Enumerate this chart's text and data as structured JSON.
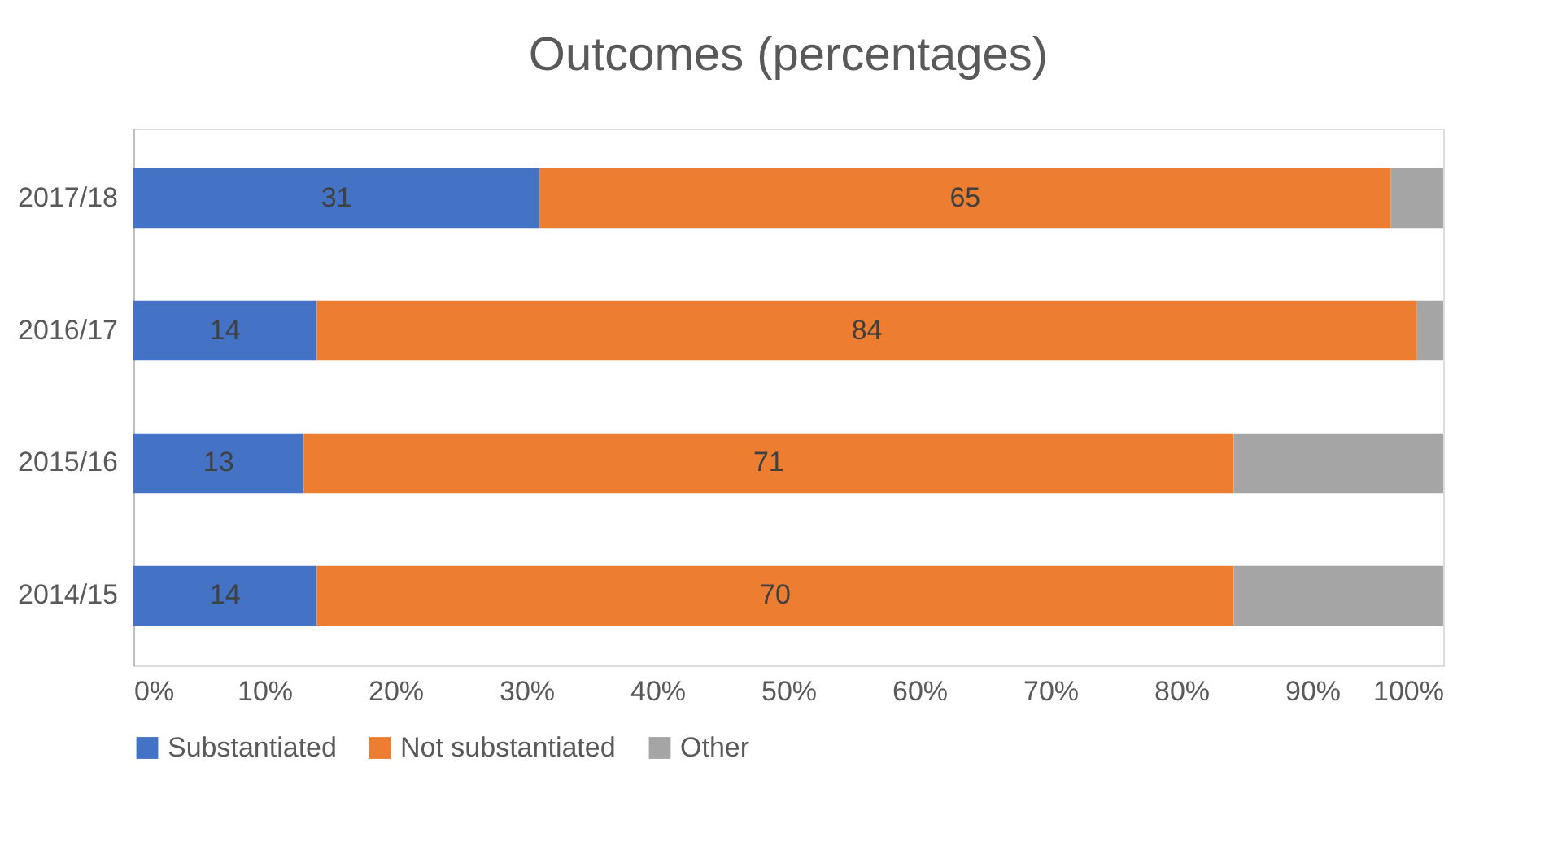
{
  "chart_data": {
    "type": "bar",
    "orientation": "horizontal",
    "stacked": true,
    "title": "Outcomes (percentages)",
    "categories": [
      "2017/18",
      "2016/17",
      "2015/16",
      "2014/15"
    ],
    "series": [
      {
        "name": "Substantiated",
        "color": "#4472c4",
        "values": [
          31,
          14,
          13,
          14
        ],
        "value_labels": [
          "31",
          "14",
          "13",
          "14"
        ]
      },
      {
        "name": "Not substantiated",
        "color": "#ed7d31",
        "values": [
          65,
          84,
          71,
          70
        ],
        "value_labels": [
          "65",
          "84",
          "71",
          "70"
        ]
      },
      {
        "name": "Other",
        "color": "#a5a5a5",
        "values": [
          4,
          2,
          16,
          16
        ]
      }
    ],
    "xlim": [
      0,
      100
    ],
    "xticks": [
      {
        "value": 0,
        "label": "0%"
      },
      {
        "value": 10,
        "label": "10%"
      },
      {
        "value": 20,
        "label": "20%"
      },
      {
        "value": 30,
        "label": "30%"
      },
      {
        "value": 40,
        "label": "40%"
      },
      {
        "value": 50,
        "label": "50%"
      },
      {
        "value": 60,
        "label": "60%"
      },
      {
        "value": 70,
        "label": "70%"
      },
      {
        "value": 80,
        "label": "80%"
      },
      {
        "value": 90,
        "label": "90%"
      },
      {
        "value": 100,
        "label": "100%"
      }
    ],
    "grid": false,
    "legend": "bottom"
  }
}
